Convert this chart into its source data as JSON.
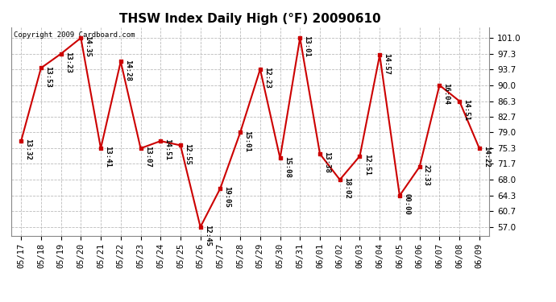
{
  "title": "THSW Index Daily High (°F) 20090610",
  "copyright": "Copyright 2009 Cardboard.com",
  "dates": [
    "05/17",
    "05/18",
    "05/19",
    "05/20",
    "05/21",
    "05/22",
    "05/23",
    "05/24",
    "05/25",
    "05/26",
    "05/27",
    "05/28",
    "05/29",
    "05/30",
    "05/31",
    "06/01",
    "06/02",
    "06/03",
    "06/04",
    "06/05",
    "06/06",
    "06/07",
    "06/08",
    "06/09"
  ],
  "values": [
    77.0,
    94.0,
    97.3,
    101.0,
    75.3,
    95.5,
    75.3,
    77.0,
    76.0,
    57.0,
    66.0,
    79.0,
    93.7,
    73.0,
    101.0,
    74.0,
    68.0,
    73.5,
    97.0,
    64.3,
    71.0,
    90.0,
    86.3,
    75.3
  ],
  "labels": [
    "13:32",
    "13:53",
    "13:23",
    "14:35",
    "13:41",
    "14:28",
    "13:07",
    "14:51",
    "12:55",
    "12:45",
    "19:05",
    "15:01",
    "12:23",
    "15:08",
    "13:01",
    "13:38",
    "18:02",
    "12:51",
    "14:57",
    "00:00",
    "22:33",
    "16:04",
    "14:51",
    "14:22"
  ],
  "yticks": [
    57.0,
    60.7,
    64.3,
    68.0,
    71.7,
    75.3,
    79.0,
    82.7,
    86.3,
    90.0,
    93.7,
    97.3,
    101.0
  ],
  "ylim": [
    55.0,
    103.5
  ],
  "line_color": "#cc0000",
  "marker_color": "#cc0000",
  "bg_color": "#ffffff",
  "grid_color": "#bbbbbb",
  "title_fontsize": 11,
  "label_fontsize": 6.5,
  "tick_fontsize": 7.5,
  "copyright_fontsize": 6.5
}
